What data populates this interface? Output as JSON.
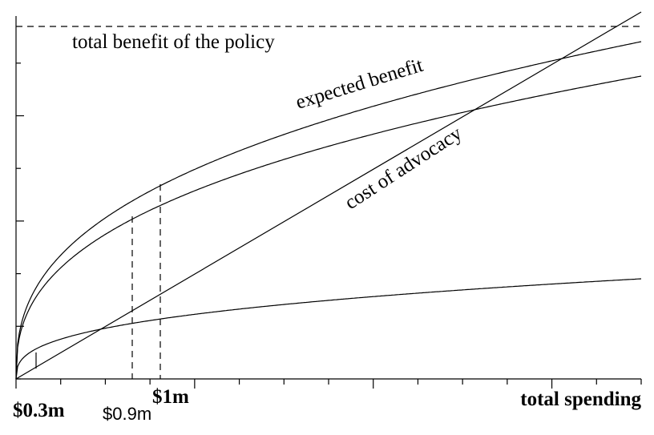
{
  "diagram": {
    "title": "total benefit of the policy",
    "curve_labels": [
      "expected benefit",
      "cost of advocacy"
    ],
    "x_labels": [
      "$0.3m",
      "$0.9m",
      "$1m",
      "total spending"
    ]
  }
}
